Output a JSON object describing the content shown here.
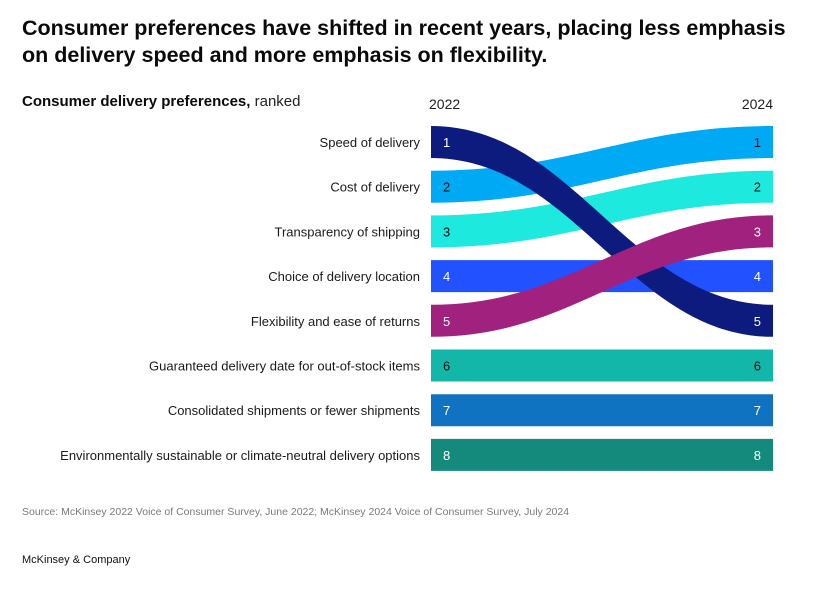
{
  "header": {
    "title": "Consumer preferences have shifted in recent years, placing less emphasis on delivery speed and more emphasis on flexibility.",
    "subtitle_bold": "Consumer delivery preferences,",
    "subtitle_normal": " ranked"
  },
  "chart_data": {
    "type": "slope-rank",
    "periods": [
      "2022",
      "2024"
    ],
    "items": [
      {
        "label": "Speed of delivery",
        "rank_2022": 1,
        "rank_2024": 5,
        "color": "#0d1b7e"
      },
      {
        "label": "Cost of delivery",
        "rank_2022": 2,
        "rank_2024": 1,
        "color": "#00a9f4"
      },
      {
        "label": "Transparency of shipping",
        "rank_2022": 3,
        "rank_2024": 2,
        "color": "#1de9df"
      },
      {
        "label": "Choice of delivery location",
        "rank_2022": 4,
        "rank_2024": 4,
        "color": "#2251ff"
      },
      {
        "label": "Flexibility and ease of returns",
        "rank_2022": 5,
        "rank_2024": 3,
        "color": "#a0217e"
      },
      {
        "label": "Guaranteed delivery date for out-of-stock items",
        "rank_2022": 6,
        "rank_2024": 6,
        "color": "#13b7aa"
      },
      {
        "label": "Consolidated shipments or fewer shipments",
        "rank_2022": 7,
        "rank_2024": 7,
        "color": "#0f73c2"
      },
      {
        "label": "Environmentally sustainable or climate-neutral delivery options",
        "rank_2022": 8,
        "rank_2024": 8,
        "color": "#138a7c"
      }
    ],
    "rank_label_colors": {
      "dark": "#0b0b0b",
      "light": "#ffffff"
    },
    "draw_order": [
      4,
      6,
      7,
      8,
      3,
      2,
      1,
      5
    ]
  },
  "footer": {
    "source": "Source: McKinsey 2022 Voice of Consumer Survey, June 2022; McKinsey 2024 Voice of Consumer Survey, July 2024",
    "brand": "McKinsey & Company"
  }
}
